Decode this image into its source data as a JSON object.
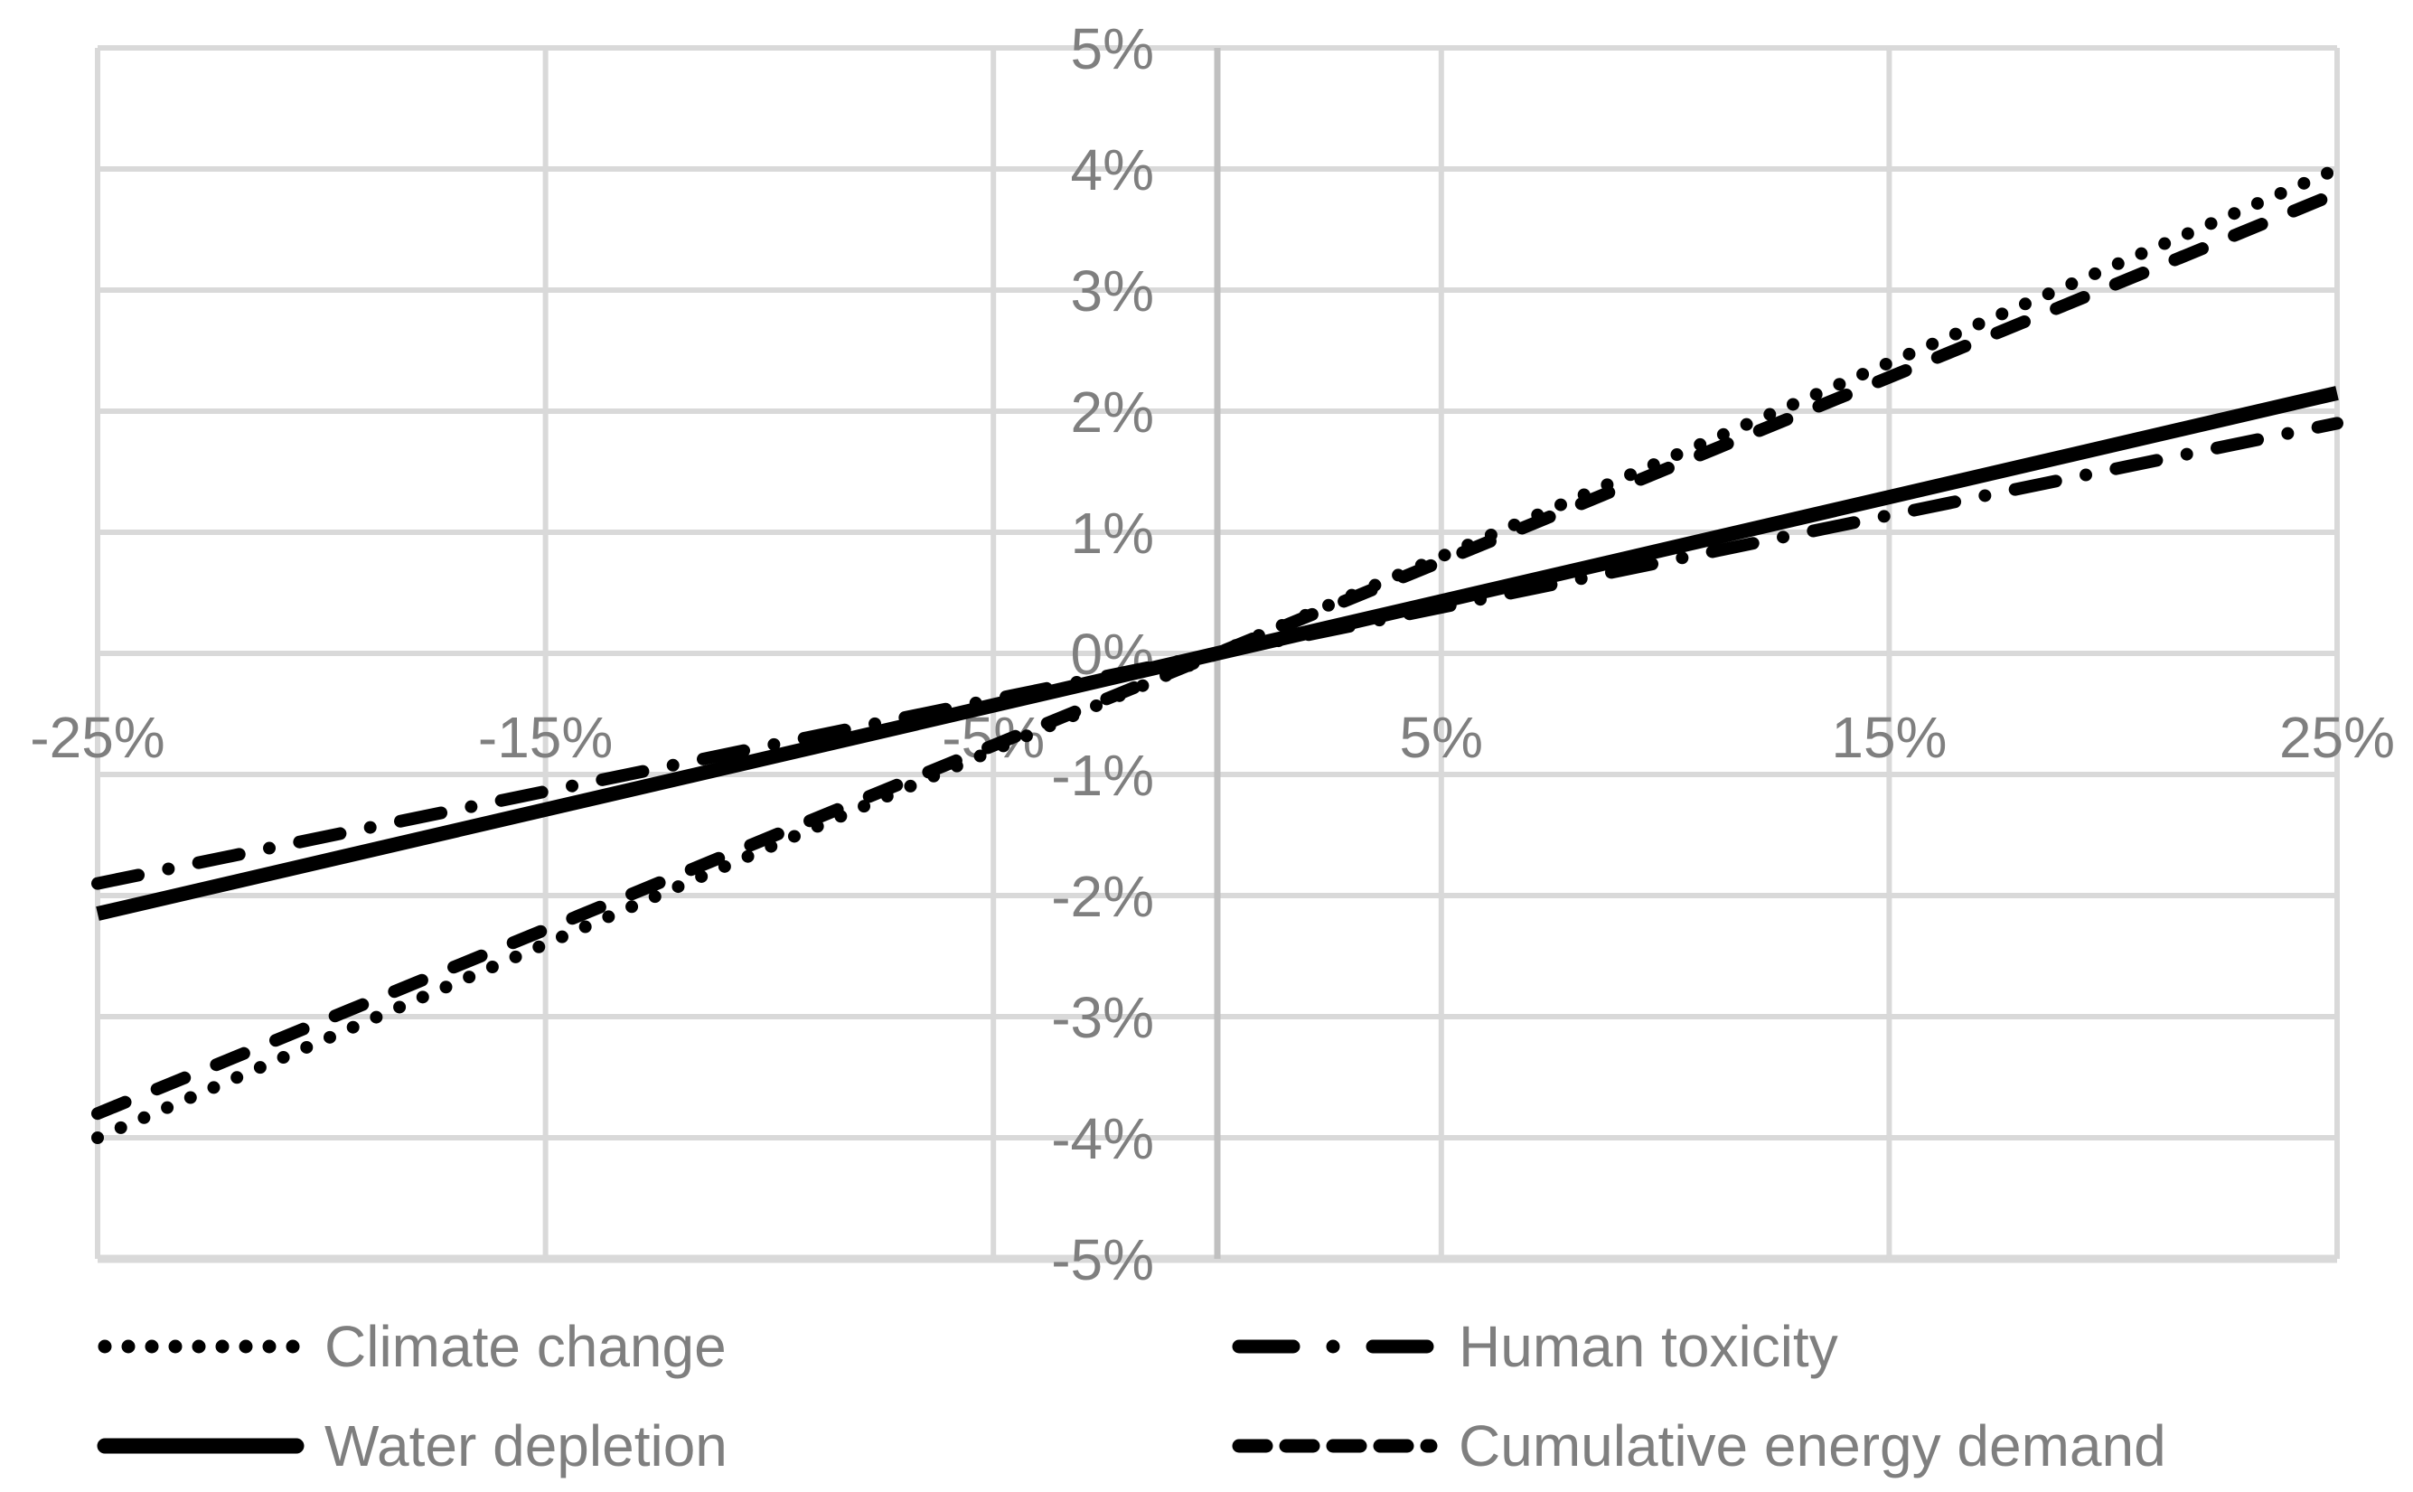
{
  "chart": {
    "title": "",
    "colors": {
      "background": "#ffffff",
      "gridline": "#d9d9d9",
      "axis_line": "#c0c0c0",
      "series_line": "#000000",
      "label_text": "#7f7f7f"
    }
  },
  "chart_data": {
    "type": "line",
    "title": "",
    "xlabel": "",
    "ylabel": "",
    "xlim": [
      -25,
      25
    ],
    "ylim": [
      -5,
      5
    ],
    "grid": true,
    "legend_position": "bottom",
    "x_ticks": [
      {
        "value": -25,
        "label": "-25%"
      },
      {
        "value": -15,
        "label": "-15%"
      },
      {
        "value": -5,
        "label": "-5%"
      },
      {
        "value": 5,
        "label": "5%"
      },
      {
        "value": 15,
        "label": "15%"
      },
      {
        "value": 25,
        "label": "25%"
      }
    ],
    "y_ticks": [
      {
        "value": 5,
        "label": "5%"
      },
      {
        "value": 4,
        "label": "4%"
      },
      {
        "value": 3,
        "label": "3%"
      },
      {
        "value": 2,
        "label": "2%"
      },
      {
        "value": 1,
        "label": "1%"
      },
      {
        "value": 0,
        "label": "0%"
      },
      {
        "value": -1,
        "label": "-1%"
      },
      {
        "value": -2,
        "label": "-2%"
      },
      {
        "value": -3,
        "label": "-3%"
      },
      {
        "value": -4,
        "label": "-4%"
      },
      {
        "value": -5,
        "label": "-5%"
      }
    ],
    "series": [
      {
        "name": "Climate change",
        "line_style": "dotted",
        "points": [
          [
            -25,
            -4.0
          ],
          [
            0,
            0
          ],
          [
            25,
            4.0
          ]
        ]
      },
      {
        "name": "Human toxicity",
        "line_style": "dashdot",
        "points": [
          [
            -25,
            -1.9
          ],
          [
            0,
            0
          ],
          [
            25,
            1.9
          ]
        ]
      },
      {
        "name": "Water depletion",
        "line_style": "solid",
        "points": [
          [
            -25,
            -2.15
          ],
          [
            0,
            0
          ],
          [
            25,
            2.15
          ]
        ]
      },
      {
        "name": "Cumulative energy demand",
        "line_style": "dashed",
        "points": [
          [
            -25,
            -3.8
          ],
          [
            0,
            0
          ],
          [
            25,
            3.8
          ]
        ]
      }
    ]
  }
}
